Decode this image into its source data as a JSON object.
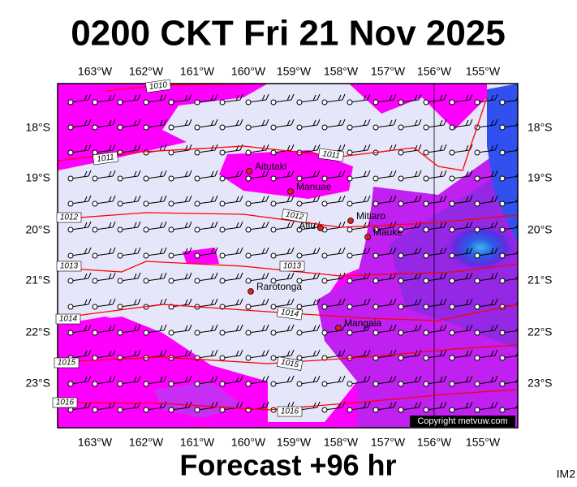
{
  "header": {
    "title": "0200 CKT Fri 21 Nov 2025"
  },
  "footer": {
    "forecast": "Forecast +96 hr",
    "corner": "IM2"
  },
  "map": {
    "lon_labels": [
      "163°W",
      "162°W",
      "161°W",
      "160°W",
      "159°W",
      "158°W",
      "157°W",
      "156°W",
      "155°W"
    ],
    "lat_labels": [
      "18°S",
      "19°S",
      "20°S",
      "21°S",
      "22°S",
      "23°S"
    ],
    "places": [
      {
        "name": "Aitutaki"
      },
      {
        "name": "Manuae"
      },
      {
        "name": "Mitiaro"
      },
      {
        "name": "Atiu"
      },
      {
        "name": "Mauke"
      },
      {
        "name": "Rarotonga"
      },
      {
        "name": "Mangaia"
      }
    ],
    "isobars": [
      {
        "label": "1010"
      },
      {
        "label": "1011"
      },
      {
        "label": "1012"
      },
      {
        "label": "1013"
      },
      {
        "label": "1014"
      },
      {
        "label": "1015"
      },
      {
        "label": "1016"
      }
    ],
    "copyright": "Copyright metvuw.com"
  }
}
